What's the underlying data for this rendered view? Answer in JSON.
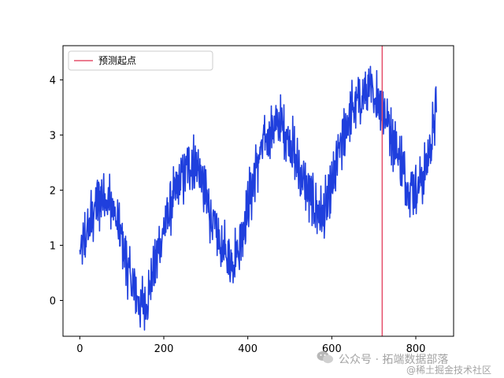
{
  "chart_data": {
    "type": "line",
    "title": "",
    "xlabel": "",
    "ylabel": "",
    "xlim": [
      -40,
      890
    ],
    "ylim": [
      -0.65,
      4.62
    ],
    "xticks": [
      0,
      200,
      400,
      600,
      800
    ],
    "yticks": [
      0,
      1,
      2,
      3,
      4
    ],
    "grid": false,
    "legend": {
      "position": "top-left",
      "entries": [
        {
          "label": "预测起点",
          "color": "#e6506b"
        }
      ]
    },
    "series": [
      {
        "color": "#1f3fdd",
        "x_range": [
          0,
          850
        ],
        "approx_points": [
          [
            0,
            0.8
          ],
          [
            20,
            1.3
          ],
          [
            40,
            1.75
          ],
          [
            60,
            1.95
          ],
          [
            80,
            1.6
          ],
          [
            100,
            1.1
          ],
          [
            120,
            0.4
          ],
          [
            145,
            -0.1
          ],
          [
            160,
            0.0
          ],
          [
            180,
            0.7
          ],
          [
            200,
            1.3
          ],
          [
            220,
            1.8
          ],
          [
            240,
            2.2
          ],
          [
            260,
            2.45
          ],
          [
            280,
            2.45
          ],
          [
            300,
            1.9
          ],
          [
            320,
            1.3
          ],
          [
            340,
            0.9
          ],
          [
            360,
            0.7
          ],
          [
            380,
            1.0
          ],
          [
            400,
            1.7
          ],
          [
            420,
            2.4
          ],
          [
            440,
            2.9
          ],
          [
            460,
            3.15
          ],
          [
            480,
            3.2
          ],
          [
            500,
            2.9
          ],
          [
            520,
            2.4
          ],
          [
            540,
            2.0
          ],
          [
            560,
            1.7
          ],
          [
            580,
            1.5
          ],
          [
            600,
            2.0
          ],
          [
            620,
            2.8
          ],
          [
            640,
            3.3
          ],
          [
            660,
            3.6
          ],
          [
            680,
            3.75
          ],
          [
            700,
            3.75
          ],
          [
            720,
            3.55
          ],
          [
            740,
            3.1
          ],
          [
            760,
            2.6
          ],
          [
            780,
            2.1
          ],
          [
            800,
            2.0
          ],
          [
            820,
            2.3
          ],
          [
            840,
            3.0
          ],
          [
            850,
            3.6
          ]
        ]
      }
    ],
    "vertical_lines": [
      {
        "x": 720,
        "color": "#e6506b"
      }
    ]
  },
  "watermark": {
    "line1": "公众号 · 拓端数据部落",
    "line2": "@稀土掘金技术社区"
  }
}
